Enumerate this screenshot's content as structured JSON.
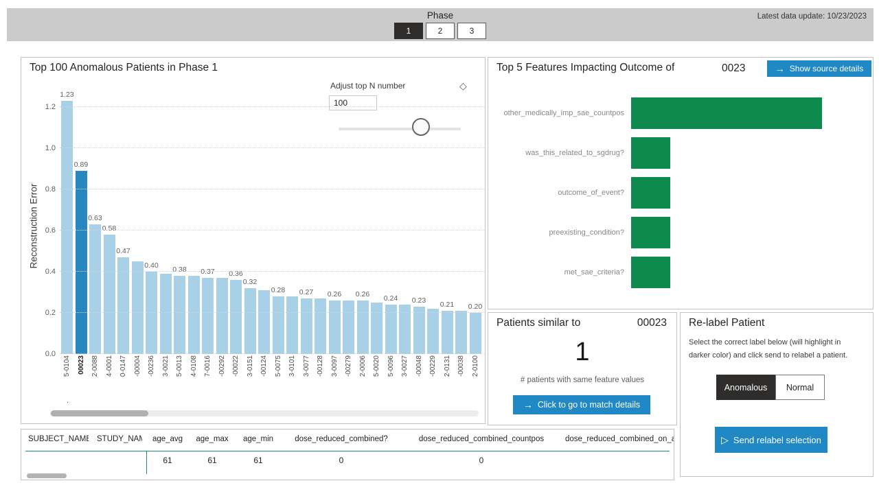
{
  "header": {
    "phase_label": "Phase",
    "phases": [
      {
        "label": "1",
        "selected": true
      },
      {
        "label": "2",
        "selected": false
      },
      {
        "label": "3",
        "selected": false
      }
    ],
    "latest_update": "Latest data update: 10/23/2023"
  },
  "anomaly_chart": {
    "title": "Top 100 Anomalous Patients in Phase 1",
    "adjust_top_n_label": "Adjust top N number",
    "top_n_value": "100",
    "eraser_icon": "eraser-icon",
    "y_axis_label": "Reconstruction Error",
    "y_ticks": [
      "0.0",
      "0.2",
      "0.4",
      "0.6",
      "0.8",
      "1.0",
      "1.2"
    ],
    "footnote_mark": ".",
    "bars": [
      {
        "patient": "5-0104",
        "value": 1.23,
        "label": "1.23",
        "selected": false
      },
      {
        "patient": "00023",
        "value": 0.89,
        "label": "0.89",
        "selected": true
      },
      {
        "patient": "2-0088",
        "value": 0.63,
        "label": "0.63",
        "selected": false
      },
      {
        "patient": "4-0001",
        "value": 0.58,
        "label": "0.58",
        "selected": false
      },
      {
        "patient": "0-0147",
        "value": 0.47,
        "label": "0.47",
        "selected": false
      },
      {
        "patient": "-00004",
        "value": 0.45,
        "label": "",
        "selected": false
      },
      {
        "patient": "-00236",
        "value": 0.4,
        "label": "0.40",
        "selected": false
      },
      {
        "patient": "3-0021",
        "value": 0.39,
        "label": "",
        "selected": false
      },
      {
        "patient": "5-0013",
        "value": 0.38,
        "label": "0.38",
        "selected": false
      },
      {
        "patient": "4-0108",
        "value": 0.38,
        "label": "",
        "selected": false
      },
      {
        "patient": "7-0016",
        "value": 0.37,
        "label": "0.37",
        "selected": false
      },
      {
        "patient": "-00292",
        "value": 0.37,
        "label": "",
        "selected": false
      },
      {
        "patient": "-00022",
        "value": 0.36,
        "label": "0.36",
        "selected": false
      },
      {
        "patient": "3-0151",
        "value": 0.32,
        "label": "0.32",
        "selected": false
      },
      {
        "patient": "-00124",
        "value": 0.31,
        "label": "",
        "selected": false
      },
      {
        "patient": "5-0075",
        "value": 0.28,
        "label": "0.28",
        "selected": false
      },
      {
        "patient": "3-0101",
        "value": 0.28,
        "label": "",
        "selected": false
      },
      {
        "patient": "3-0077",
        "value": 0.27,
        "label": "0.27",
        "selected": false
      },
      {
        "patient": "-00128",
        "value": 0.27,
        "label": "",
        "selected": false
      },
      {
        "patient": "3-0097",
        "value": 0.26,
        "label": "0.26",
        "selected": false
      },
      {
        "patient": "-00279",
        "value": 0.26,
        "label": "",
        "selected": false
      },
      {
        "patient": "2-0006",
        "value": 0.26,
        "label": "0.26",
        "selected": false
      },
      {
        "patient": "5-0020",
        "value": 0.25,
        "label": "",
        "selected": false
      },
      {
        "patient": "5-0096",
        "value": 0.24,
        "label": "0.24",
        "selected": false
      },
      {
        "patient": "3-0027",
        "value": 0.24,
        "label": "",
        "selected": false
      },
      {
        "patient": "-00048",
        "value": 0.23,
        "label": "0.23",
        "selected": false
      },
      {
        "patient": "-00229",
        "value": 0.22,
        "label": "",
        "selected": false
      },
      {
        "patient": "2-0131",
        "value": 0.21,
        "label": "0.21",
        "selected": false
      },
      {
        "patient": "-00038",
        "value": 0.21,
        "label": "",
        "selected": false
      },
      {
        "patient": "2-0100",
        "value": 0.2,
        "label": "0.20",
        "selected": false
      }
    ]
  },
  "feature_panel": {
    "title": "Top 5 Features Impacting Outcome of",
    "patient_id": "0023",
    "button_label": "Show source details",
    "arrow_icon": "→",
    "features": [
      {
        "name": "other_medically_imp_sae_countpos",
        "value_rel": 1.0
      },
      {
        "name": "was_this_related_to_sgdrug?",
        "value_rel": 0.205
      },
      {
        "name": "outcome_of_event?",
        "value_rel": 0.205
      },
      {
        "name": "preexisting_condition?",
        "value_rel": 0.205
      },
      {
        "name": "met_sae_criteria?",
        "value_rel": 0.205
      }
    ]
  },
  "similar_panel": {
    "title": "Patients similar to",
    "patient_id": "00023",
    "count": "1",
    "caption": "# patients with same feature values",
    "button_label": "Click to go to match details",
    "arrow_icon": "→"
  },
  "relabel_panel": {
    "title": "Re-label Patient",
    "description": "Select the correct label below (will highlight in darker color) and click send to relabel a patient.",
    "options": [
      {
        "label": "Anomalous",
        "selected": true
      },
      {
        "label": "Normal",
        "selected": false
      }
    ],
    "send_label": "Send relabel selection",
    "send_icon": "▷"
  },
  "table": {
    "columns": [
      "SUBJECT_NAME",
      "STUDY_NAME",
      "age_avg",
      "age_max",
      "age_min",
      "dose_reduced_combined?",
      "dose_reduced_combined_countpos",
      "dose_reduced_combined_on_all_A"
    ],
    "row": [
      "",
      "",
      "61",
      "61",
      "61",
      "0",
      "0",
      ""
    ]
  },
  "colors": {
    "bar": "#a8d0e6",
    "bar_selected": "#2987c0",
    "feature_bar": "#0e8a4e",
    "accent_button": "#2089c5",
    "table_line": "#179a5e",
    "topbar_bg": "#cbcbcb",
    "selected_dark": "#2e2d2c"
  },
  "chart_data": [
    {
      "type": "bar",
      "title": "Top 100 Anomalous Patients in Phase 1",
      "xlabel": "",
      "ylabel": "Reconstruction Error",
      "ylim": [
        0,
        1.3
      ],
      "grid": "horizontal-dotted",
      "legend": "none",
      "highlighted_category": "00023",
      "categories": [
        "5-0104",
        "00023",
        "2-0088",
        "4-0001",
        "0-0147",
        "-00004",
        "-00236",
        "3-0021",
        "5-0013",
        "4-0108",
        "7-0016",
        "-00292",
        "-00022",
        "3-0151",
        "-00124",
        "5-0075",
        "3-0101",
        "3-0077",
        "-00128",
        "3-0097",
        "-00279",
        "2-0006",
        "5-0020",
        "5-0096",
        "3-0027",
        "-00048",
        "-00229",
        "2-0131",
        "-00038",
        "2-0100"
      ],
      "values": [
        1.23,
        0.89,
        0.63,
        0.58,
        0.47,
        0.45,
        0.4,
        0.39,
        0.38,
        0.38,
        0.37,
        0.37,
        0.36,
        0.32,
        0.31,
        0.28,
        0.28,
        0.27,
        0.27,
        0.26,
        0.26,
        0.26,
        0.25,
        0.24,
        0.24,
        0.23,
        0.22,
        0.21,
        0.21,
        0.2
      ]
    },
    {
      "type": "bar",
      "orientation": "horizontal",
      "title": "Top 5 Features Impacting Outcome of 0023",
      "xlabel": "",
      "ylabel": "",
      "legend": "none",
      "categories": [
        "other_medically_imp_sae_countpos",
        "was_this_related_to_sgdrug?",
        "outcome_of_event?",
        "preexisting_condition?",
        "met_sae_criteria?"
      ],
      "values": [
        1.0,
        0.205,
        0.205,
        0.205,
        0.205
      ],
      "note": "relative bar lengths, no value axis shown"
    }
  ]
}
